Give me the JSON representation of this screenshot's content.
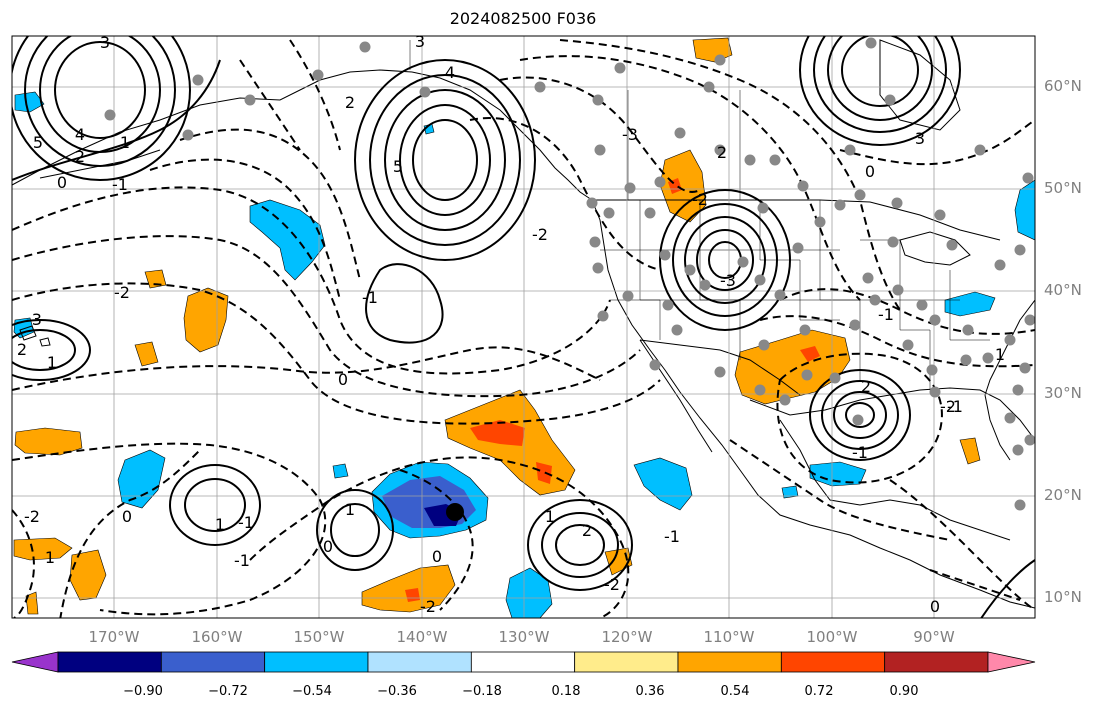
{
  "title": "2024082500 F036",
  "lat_labels": [
    "60°N",
    "50°N",
    "40°N",
    "30°N",
    "20°N",
    "10°N"
  ],
  "lon_labels": [
    "170°W",
    "160°W",
    "150°W",
    "140°W",
    "130°W",
    "120°W",
    "110°W",
    "100°W",
    "90°W"
  ],
  "colorbar": {
    "ticks": [
      "−0.90",
      "−0.72",
      "−0.54",
      "−0.36",
      "−0.18",
      "0.18",
      "0.36",
      "0.54",
      "0.72",
      "0.90"
    ],
    "colors": [
      "#9933cc",
      "#000080",
      "#3a5fcd",
      "#00bfff",
      "#b0e2ff",
      "#ffffff",
      "#ffec8b",
      "#ffa500",
      "#ff4500",
      "#b22222",
      "#ff88aa"
    ]
  },
  "contour_labels": [
    "3",
    "5",
    "4",
    "2",
    "0",
    "-1",
    "1",
    "-2",
    "-3",
    "2",
    "1",
    "0",
    "-1",
    "4",
    "3",
    "5",
    "-2",
    "2",
    "-3",
    "2",
    "-2",
    "0",
    "-3",
    "3",
    "-1",
    "1",
    "2",
    "-1",
    "-2",
    "2",
    "0",
    "-1",
    "0",
    "1",
    "1",
    "-2",
    "-1",
    "1",
    "-1",
    "-2",
    "-2",
    "0",
    "1",
    "0",
    "-1"
  ]
}
